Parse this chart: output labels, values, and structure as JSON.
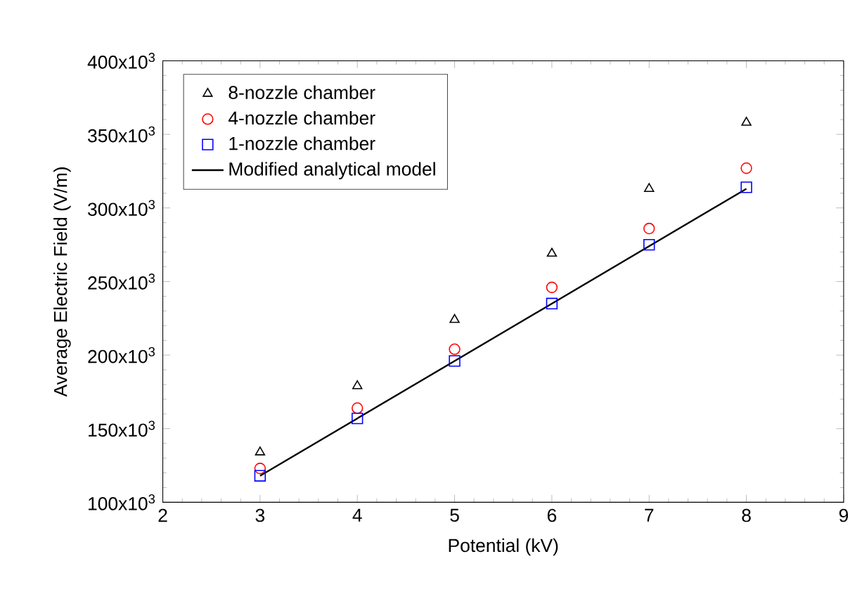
{
  "chart_data": {
    "type": "scatter",
    "xlabel": "Potential (kV)",
    "ylabel": "Average Electric Field (V/m)",
    "xlim": [
      2,
      9
    ],
    "xticks": [
      2,
      3,
      4,
      5,
      6,
      7,
      8,
      9
    ],
    "ylim": [
      100000,
      400000
    ],
    "yticks": [
      {
        "value": 100000,
        "label": "100x10$^{3}$"
      },
      {
        "value": 150000,
        "label": "150x10$^{3}$"
      },
      {
        "value": 200000,
        "label": "200x10$^{3}$"
      },
      {
        "value": 250000,
        "label": "250x10$^{3}$"
      },
      {
        "value": 300000,
        "label": "300x10$^{3}$"
      },
      {
        "value": 350000,
        "label": "350x10$^{3}$"
      },
      {
        "value": 400000,
        "label": "400x10$^{3}$"
      }
    ],
    "x": [
      3,
      4,
      5,
      6,
      7,
      8
    ],
    "grid": false,
    "legend": "top left",
    "series": [
      {
        "name": "8-nozzle chamber",
        "color": "#000000",
        "marker": "triangle",
        "values": [
          134000,
          179000,
          224000,
          269000,
          313000,
          358000
        ]
      },
      {
        "name": "4-nozzle chamber",
        "color": "#ff0000",
        "marker": "circle",
        "values": [
          123000,
          164000,
          204000,
          246000,
          286000,
          327000
        ]
      },
      {
        "name": "1-nozzle chamber",
        "color": "#0000ff",
        "marker": "square",
        "values": [
          118000,
          157000,
          196000,
          235000,
          275000,
          314000
        ]
      },
      {
        "name": "Modified analytical model",
        "color": "#000000",
        "type": "line",
        "marker": "none",
        "line_style": "solid",
        "x": [
          3,
          8
        ],
        "values": [
          118000,
          313000
        ]
      }
    ]
  }
}
